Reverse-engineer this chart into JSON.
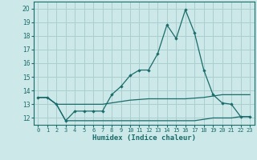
{
  "title": "",
  "xlabel": "Humidex (Indice chaleur)",
  "bg_color": "#cce8e8",
  "grid_color": "#aacfcf",
  "line_color": "#1a6b6b",
  "ylim": [
    11.5,
    20.5
  ],
  "xlim": [
    -0.5,
    23.5
  ],
  "yticks": [
    12,
    13,
    14,
    15,
    16,
    17,
    18,
    19,
    20
  ],
  "xticks": [
    0,
    1,
    2,
    3,
    4,
    5,
    6,
    7,
    8,
    9,
    10,
    11,
    12,
    13,
    14,
    15,
    16,
    17,
    18,
    19,
    20,
    21,
    22,
    23
  ],
  "series1": {
    "x": [
      0,
      1,
      2,
      3,
      4,
      5,
      6,
      7,
      8,
      9,
      10,
      11,
      12,
      13,
      14,
      15,
      16,
      17,
      18,
      19,
      20,
      21,
      22,
      23
    ],
    "y": [
      13.5,
      13.5,
      13.0,
      11.8,
      12.5,
      12.5,
      12.5,
      12.5,
      13.7,
      14.3,
      15.1,
      15.5,
      15.5,
      16.7,
      18.8,
      17.8,
      19.9,
      18.2,
      15.5,
      13.7,
      13.1,
      13.0,
      12.1,
      12.1
    ]
  },
  "series2": {
    "x": [
      0,
      1,
      2,
      3,
      4,
      5,
      6,
      7,
      8,
      9,
      10,
      11,
      12,
      13,
      14,
      15,
      16,
      17,
      18,
      19,
      20,
      21,
      22,
      23
    ],
    "y": [
      13.5,
      13.5,
      13.0,
      13.0,
      13.0,
      13.0,
      13.0,
      13.0,
      13.1,
      13.2,
      13.3,
      13.35,
      13.4,
      13.4,
      13.4,
      13.4,
      13.4,
      13.45,
      13.5,
      13.6,
      13.7,
      13.7,
      13.7,
      13.7
    ]
  },
  "series3": {
    "x": [
      0,
      1,
      2,
      3,
      4,
      5,
      6,
      7,
      8,
      9,
      10,
      11,
      12,
      13,
      14,
      15,
      16,
      17,
      18,
      19,
      20,
      21,
      22,
      23
    ],
    "y": [
      13.5,
      13.5,
      13.0,
      11.8,
      11.8,
      11.8,
      11.8,
      11.8,
      11.8,
      11.8,
      11.8,
      11.8,
      11.8,
      11.8,
      11.8,
      11.8,
      11.8,
      11.8,
      11.9,
      12.0,
      12.0,
      12.0,
      12.1,
      12.1
    ]
  }
}
